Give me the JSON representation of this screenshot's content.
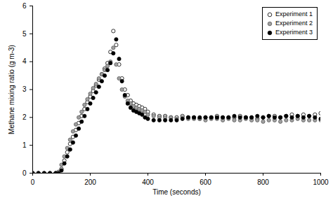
{
  "chart_data": {
    "type": "scatter",
    "x_label": "Time (seconds)",
    "y_label": "Methane mixing ratio (g m-3)",
    "x": [
      0,
      20,
      40,
      60,
      80,
      90,
      100,
      110,
      120,
      130,
      140,
      150,
      160,
      170,
      180,
      190,
      200,
      210,
      220,
      230,
      240,
      250,
      260,
      270,
      280,
      290,
      300,
      310,
      320,
      330,
      340,
      350,
      360,
      370,
      380,
      390,
      400,
      420,
      440,
      460,
      480,
      500,
      520,
      540,
      560,
      580,
      600,
      620,
      640,
      660,
      680,
      700,
      720,
      740,
      760,
      780,
      800,
      820,
      840,
      860,
      880,
      900,
      920,
      940,
      960,
      980,
      1000
    ],
    "series": [
      {
        "name": "Experiment 1",
        "color": "#000000",
        "marker": "circle_open",
        "values": [
          0,
          0,
          0,
          0,
          0,
          0,
          0.15,
          0.45,
          0.75,
          1.05,
          1.3,
          1.55,
          1.8,
          2.05,
          2.3,
          2.55,
          2.75,
          2.95,
          3.15,
          3.35,
          3.55,
          3.75,
          3.95,
          4.35,
          5.1,
          4.6,
          3.9,
          3.4,
          3.0,
          2.8,
          2.6,
          2.5,
          2.45,
          2.4,
          2.35,
          2.3,
          2.2,
          2.1,
          2.05,
          2.05,
          2.0,
          2.0,
          2.05,
          2.0,
          2.0,
          1.95,
          2.0,
          2.0,
          2.05,
          2.0,
          2.0,
          2.0,
          2.05,
          2.0,
          2.0,
          1.95,
          2.0,
          2.05,
          2.05,
          2.0,
          2.05,
          2.1,
          2.05,
          2.1,
          2.05,
          2.1,
          2.15
        ]
      },
      {
        "name": "Experiment 2",
        "color": "#a0a0a0",
        "marker": "circle",
        "values": [
          0,
          0,
          0,
          0,
          0,
          0.05,
          0.3,
          0.6,
          0.9,
          1.2,
          1.5,
          1.75,
          2.0,
          2.2,
          2.45,
          2.65,
          2.85,
          3.05,
          3.2,
          3.4,
          3.55,
          3.7,
          3.85,
          4.0,
          4.5,
          3.9,
          3.4,
          3.0,
          2.75,
          2.6,
          2.5,
          2.4,
          2.35,
          2.3,
          2.25,
          2.2,
          2.1,
          2.05,
          2.0,
          2.0,
          2.0,
          1.95,
          2.0,
          1.95,
          1.95,
          1.95,
          1.9,
          1.95,
          1.95,
          1.9,
          1.95,
          1.9,
          1.9,
          1.95,
          1.9,
          1.9,
          1.85,
          1.9,
          1.9,
          1.85,
          1.9,
          1.9,
          1.95,
          1.9,
          1.9,
          1.9,
          1.9
        ]
      },
      {
        "name": "Experiment 3",
        "color": "#000000",
        "marker": "circle",
        "values": [
          0,
          0,
          0,
          0,
          0,
          0,
          0.1,
          0.35,
          0.6,
          0.85,
          1.1,
          1.35,
          1.6,
          1.85,
          2.05,
          2.3,
          2.5,
          2.7,
          2.9,
          3.1,
          3.3,
          3.5,
          3.7,
          3.95,
          4.3,
          4.8,
          4.1,
          3.3,
          2.8,
          2.5,
          2.35,
          2.25,
          2.2,
          2.15,
          2.1,
          2.0,
          1.95,
          1.9,
          1.9,
          1.9,
          1.9,
          1.9,
          1.95,
          2.0,
          2.0,
          2.0,
          2.0,
          2.0,
          2.0,
          2.0,
          2.0,
          2.05,
          2.0,
          2.0,
          2.0,
          2.05,
          2.0,
          2.05,
          2.0,
          2.0,
          2.05,
          2.0,
          2.05,
          2.0,
          2.05,
          2.0,
          1.95
        ]
      }
    ],
    "xlim": [
      0,
      1000
    ],
    "xticks": [
      0,
      200,
      400,
      600,
      800,
      1000
    ],
    "ylim": [
      0,
      6
    ],
    "yticks": [
      0,
      1,
      2,
      3,
      4,
      5,
      6
    ],
    "grid": false,
    "legend": "top-right"
  }
}
